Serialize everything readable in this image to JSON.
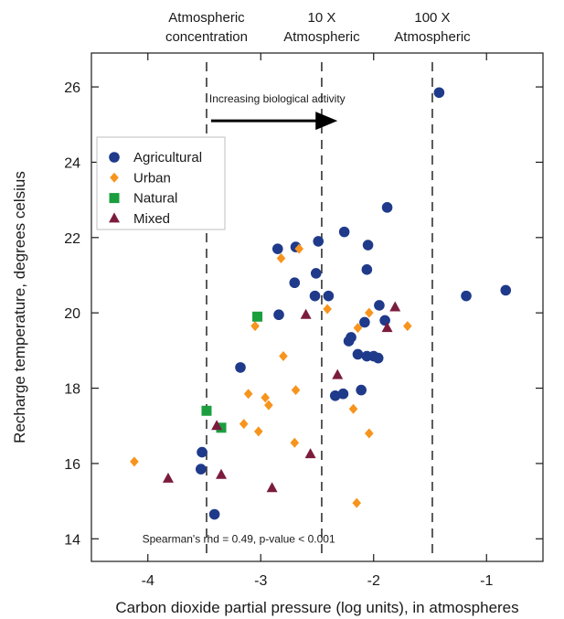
{
  "chart_data": {
    "type": "scatter",
    "title": "",
    "xlabel": "Carbon dioxide partial pressure (log units), in atmospheres",
    "ylabel": "Recharge temperature, degrees celsius",
    "xlim": [
      -4.5,
      -0.5
    ],
    "ylim": [
      13.4,
      26.9
    ],
    "xticks": [
      -4,
      -3,
      -2,
      -1
    ],
    "xtick_labels": [
      "-4",
      "-3",
      "-2",
      "-1"
    ],
    "yticks": [
      14,
      16,
      18,
      20,
      22,
      24,
      26
    ],
    "ytick_labels": [
      "14",
      "16",
      "18",
      "20",
      "22",
      "24",
      "26"
    ],
    "grid": false,
    "legend_position": "upper-left",
    "reference_lines": [
      {
        "x": -3.48,
        "label_lines": [
          "Atmospheric",
          "concentration"
        ]
      },
      {
        "x": -2.46,
        "label_lines": [
          "10 X",
          "Atmospheric"
        ]
      },
      {
        "x": -1.48,
        "label_lines": [
          "100 X",
          "Atmospheric"
        ]
      }
    ],
    "arrow_annotation": {
      "text": "Increasing biological activity",
      "x_start": -3.44,
      "x_end": -2.32,
      "y": 25.1
    },
    "stat_annotation": {
      "text": "Spearman's rhd = 0.49, p-value < 0.001",
      "x": -4.05,
      "y": 13.9
    },
    "series": [
      {
        "name": "Agricultural",
        "marker": "circle",
        "color": "#1f3a8a",
        "points": [
          [
            -1.42,
            25.85
          ],
          [
            -1.88,
            22.8
          ],
          [
            -2.26,
            22.15
          ],
          [
            -2.49,
            21.9
          ],
          [
            -2.85,
            21.7
          ],
          [
            -2.69,
            21.75
          ],
          [
            -2.05,
            21.8
          ],
          [
            -2.51,
            21.05
          ],
          [
            -2.06,
            21.15
          ],
          [
            -2.7,
            20.8
          ],
          [
            -2.4,
            20.45
          ],
          [
            -2.52,
            20.45
          ],
          [
            -1.18,
            20.45
          ],
          [
            -0.83,
            20.6
          ],
          [
            -1.95,
            20.2
          ],
          [
            -1.9,
            19.8
          ],
          [
            -2.08,
            19.75
          ],
          [
            -2.84,
            19.95
          ],
          [
            -2.2,
            19.35
          ],
          [
            -2.22,
            19.25
          ],
          [
            -2.14,
            18.9
          ],
          [
            -2.06,
            18.85
          ],
          [
            -2.0,
            18.85
          ],
          [
            -1.96,
            18.8
          ],
          [
            -3.18,
            18.55
          ],
          [
            -2.34,
            17.8
          ],
          [
            -2.27,
            17.85
          ],
          [
            -2.11,
            17.95
          ],
          [
            -3.52,
            16.3
          ],
          [
            -3.53,
            15.85
          ],
          [
            -3.41,
            14.65
          ]
        ]
      },
      {
        "name": "Urban",
        "marker": "diamond",
        "color": "#f7941d",
        "points": [
          [
            -2.66,
            21.7
          ],
          [
            -2.82,
            21.45
          ],
          [
            -2.41,
            20.1
          ],
          [
            -2.04,
            20.0
          ],
          [
            -1.7,
            19.65
          ],
          [
            -3.05,
            19.65
          ],
          [
            -2.14,
            19.6
          ],
          [
            -2.8,
            18.85
          ],
          [
            -3.11,
            17.85
          ],
          [
            -2.69,
            17.95
          ],
          [
            -2.96,
            17.75
          ],
          [
            -2.93,
            17.55
          ],
          [
            -2.18,
            17.45
          ],
          [
            -3.15,
            17.05
          ],
          [
            -3.02,
            16.85
          ],
          [
            -2.04,
            16.8
          ],
          [
            -2.7,
            16.55
          ],
          [
            -4.12,
            16.05
          ],
          [
            -2.15,
            14.95
          ]
        ]
      },
      {
        "name": "Natural",
        "marker": "square",
        "color": "#1b9e3e",
        "points": [
          [
            -3.03,
            19.9
          ],
          [
            -3.48,
            17.4
          ],
          [
            -3.35,
            16.95
          ]
        ]
      },
      {
        "name": "Mixed",
        "marker": "triangle",
        "color": "#7b1c3e",
        "points": [
          [
            -2.6,
            19.95
          ],
          [
            -1.81,
            20.15
          ],
          [
            -1.88,
            19.6
          ],
          [
            -2.32,
            18.35
          ],
          [
            -3.39,
            17.0
          ],
          [
            -2.56,
            16.25
          ],
          [
            -3.82,
            15.6
          ],
          [
            -3.35,
            15.7
          ],
          [
            -2.9,
            15.35
          ]
        ]
      }
    ]
  }
}
